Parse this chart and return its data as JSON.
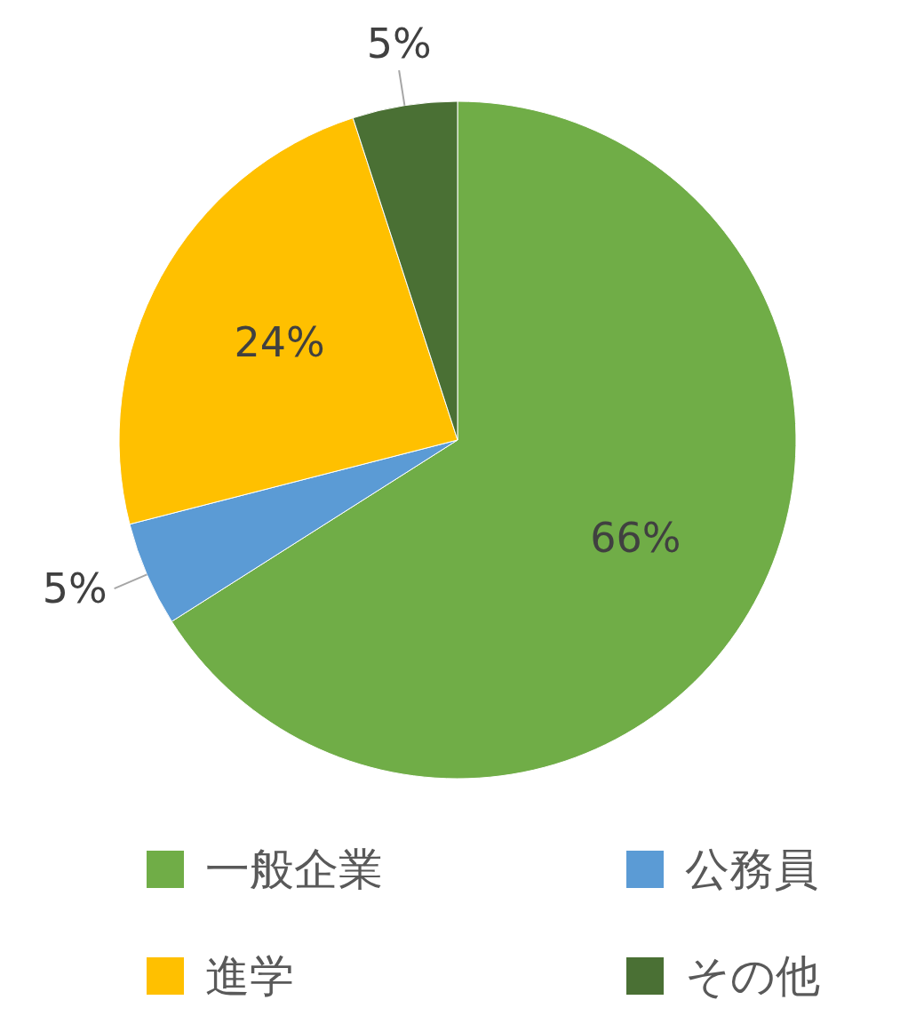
{
  "chart_data": {
    "type": "pie",
    "categories": [
      "一般企業",
      "公務員",
      "進学",
      "その他"
    ],
    "values": [
      66,
      5,
      24,
      5
    ],
    "colors": [
      "#70ad47",
      "#5b9bd5",
      "#ffc000",
      "#4a7034"
    ],
    "value_labels": [
      "66%",
      "5%",
      "24%",
      "5%"
    ],
    "legend": "bottom"
  }
}
